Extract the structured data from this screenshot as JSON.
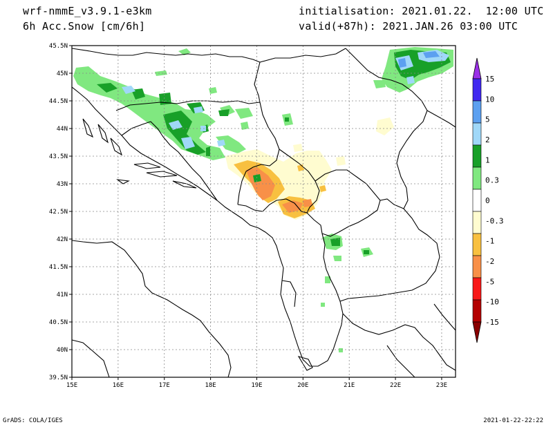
{
  "header": {
    "model": "wrf-nmmE_v3.9.1-e3km",
    "field": "6h Acc.Snow [cm/6h]",
    "init": "initialisation: 2021.01.22.  12:00 UTC",
    "valid": "valid(+87h): 2021.JAN.26 03:00 UTC"
  },
  "footer": {
    "credit": "GrADS: COLA/IGES",
    "timestamp": "2021-01-22-22:22"
  },
  "map": {
    "lon_range": [
      15,
      23.3
    ],
    "lat_range": [
      39.5,
      45.5
    ],
    "lon_ticks": [
      "15E",
      "16E",
      "17E",
      "18E",
      "19E",
      "20E",
      "21E",
      "22E",
      "23E"
    ],
    "lat_ticks": [
      "39.5N",
      "40N",
      "40.5N",
      "41N",
      "41.5N",
      "42N",
      "42.5N",
      "43N",
      "43.5N",
      "44N",
      "44.5N",
      "45N",
      "45.5N"
    ],
    "grid": "dotted"
  },
  "colorbar": {
    "labels": [
      "15",
      "10",
      "5",
      "2",
      "1",
      "0.3",
      "0",
      "-0.3",
      "-1",
      "-2",
      "-5",
      "-10",
      "-15"
    ],
    "colors": [
      "#4028f0",
      "#5ca0f0",
      "#a0d8f8",
      "#18a028",
      "#80e880",
      "#ffffff",
      "#fffcd0",
      "#f8c040",
      "#f89048",
      "#f81818",
      "#b40000"
    ],
    "top_color": "#9b30e8",
    "bottom_color": "#8a0000"
  },
  "colors": {
    "lgreen": "#80e880",
    "dgreen": "#18a028",
    "lblue": "#a0d8f8",
    "blue": "#5ca0f0",
    "dblue": "#4028f0",
    "cream": "#fffcd0",
    "gold": "#f8c040",
    "orange": "#f89048"
  }
}
